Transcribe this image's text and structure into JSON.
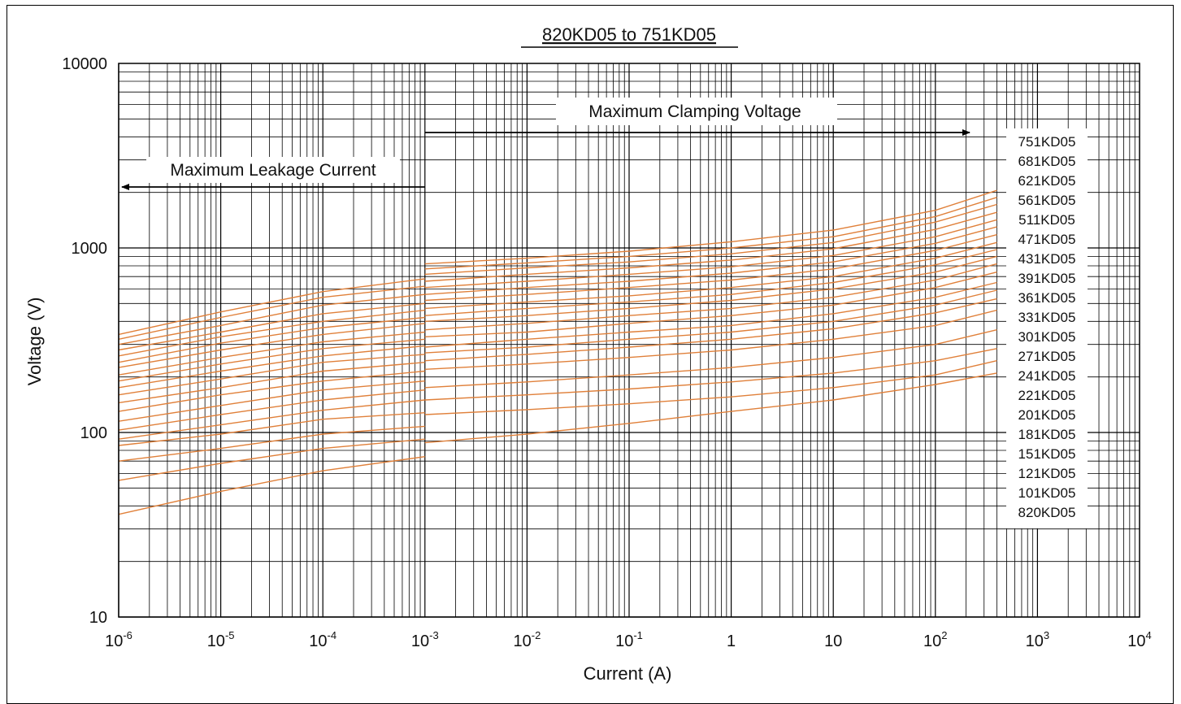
{
  "chart_data": {
    "type": "line",
    "title": "820KD05 to 751KD05",
    "xlabel": "Current (A)",
    "ylabel": "Voltage (V)",
    "xscale": "log",
    "yscale": "log",
    "xlim": [
      1e-06,
      10000
    ],
    "ylim": [
      10,
      10000
    ],
    "grid": true,
    "x_tick_labels": [
      {
        "base": "10",
        "exp": "-6"
      },
      {
        "base": "10",
        "exp": "-5"
      },
      {
        "base": "10",
        "exp": "-4"
      },
      {
        "base": "10",
        "exp": "-3"
      },
      {
        "base": "10",
        "exp": "-2"
      },
      {
        "base": "10",
        "exp": "-1"
      },
      {
        "base": "1",
        "exp": ""
      },
      {
        "base": "10",
        "exp": ""
      },
      {
        "base": "10",
        "exp": "2"
      },
      {
        "base": "10",
        "exp": "3"
      },
      {
        "base": "10",
        "exp": "4"
      }
    ],
    "y_tick_labels": [
      "10",
      "100",
      "1000",
      "10000"
    ],
    "annotations": [
      {
        "text": "Maximum Clamping Voltage",
        "direction": "right",
        "x_start": 0.001,
        "x_end": 200
      },
      {
        "text": "Maximum Leakage Current",
        "direction": "left",
        "x_start": 0.001,
        "x_end": 1e-06
      }
    ],
    "line_color": "#E0803A",
    "legend_placement": "right",
    "legend": [
      "751KD05",
      "681KD05",
      "621KD05",
      "561KD05",
      "511KD05",
      "471KD05",
      "431KD05",
      "391KD05",
      "361KD05",
      "331KD05",
      "301KD05",
      "271KD05",
      "241KD05",
      "221KD05",
      "201KD05",
      "181KD05",
      "151KD05",
      "121KD05",
      "101KD05",
      "820KD05"
    ],
    "leakage_series": [
      {
        "x": [
          1e-06,
          1e-05,
          0.0001,
          0.001
        ],
        "y": [
          340,
          450,
          580,
          680
        ]
      },
      {
        "x": [
          1e-06,
          1e-05,
          0.0001,
          0.001
        ],
        "y": [
          320,
          420,
          540,
          620
        ]
      },
      {
        "x": [
          1e-06,
          1e-05,
          0.0001,
          0.001
        ],
        "y": [
          300,
          380,
          490,
          560
        ]
      },
      {
        "x": [
          1e-06,
          1e-05,
          0.0001,
          0.001
        ],
        "y": [
          280,
          350,
          440,
          500
        ]
      },
      {
        "x": [
          1e-06,
          1e-05,
          0.0001,
          0.001
        ],
        "y": [
          260,
          330,
          400,
          460
        ]
      },
      {
        "x": [
          1e-06,
          1e-05,
          0.0001,
          0.001
        ],
        "y": [
          240,
          305,
          370,
          420
        ]
      },
      {
        "x": [
          1e-06,
          1e-05,
          0.0001,
          0.001
        ],
        "y": [
          225,
          280,
          340,
          390
        ]
      },
      {
        "x": [
          1e-06,
          1e-05,
          0.0001,
          0.001
        ],
        "y": [
          205,
          255,
          310,
          350
        ]
      },
      {
        "x": [
          1e-06,
          1e-05,
          0.0001,
          0.001
        ],
        "y": [
          190,
          235,
          285,
          320
        ]
      },
      {
        "x": [
          1e-06,
          1e-05,
          0.0001,
          0.001
        ],
        "y": [
          175,
          215,
          260,
          295
        ]
      },
      {
        "x": [
          1e-06,
          1e-05,
          0.0001,
          0.001
        ],
        "y": [
          160,
          195,
          240,
          265
        ]
      },
      {
        "x": [
          1e-06,
          1e-05,
          0.0001,
          0.001
        ],
        "y": [
          145,
          175,
          215,
          240
        ]
      },
      {
        "x": [
          1e-06,
          1e-05,
          0.0001,
          0.001
        ],
        "y": [
          130,
          160,
          190,
          215
        ]
      },
      {
        "x": [
          1e-06,
          1e-05,
          0.0001,
          0.001
        ],
        "y": [
          115,
          140,
          170,
          190
        ]
      },
      {
        "x": [
          1e-06,
          1e-05,
          0.0001,
          0.001
        ],
        "y": [
          103,
          125,
          150,
          170
        ]
      },
      {
        "x": [
          1e-06,
          1e-05,
          0.0001,
          0.001
        ],
        "y": [
          92,
          110,
          132,
          150
        ]
      },
      {
        "x": [
          1e-06,
          1e-05,
          0.0001,
          0.001
        ],
        "y": [
          85,
          98,
          118,
          128
        ]
      },
      {
        "x": [
          1e-06,
          1e-05,
          0.0001,
          0.001
        ],
        "y": [
          70,
          82,
          98,
          108
        ]
      },
      {
        "x": [
          1e-06,
          1e-05,
          0.0001,
          0.001
        ],
        "y": [
          55,
          68,
          82,
          92
        ]
      },
      {
        "x": [
          1e-06,
          1e-05,
          0.0001,
          0.001
        ],
        "y": [
          36,
          48,
          62,
          74
        ]
      }
    ],
    "clamping_series": [
      {
        "name": "751KD05",
        "x": [
          0.001,
          0.01,
          0.1,
          1,
          10,
          100,
          400
        ],
        "y": [
          820,
          880,
          960,
          1080,
          1250,
          1600,
          2050
        ]
      },
      {
        "name": "681KD05",
        "x": [
          0.001,
          0.01,
          0.1,
          1,
          10,
          100,
          400
        ],
        "y": [
          770,
          830,
          900,
          1000,
          1150,
          1480,
          1880
        ]
      },
      {
        "name": "621KD05",
        "x": [
          0.001,
          0.01,
          0.1,
          1,
          10,
          100,
          400
        ],
        "y": [
          720,
          780,
          840,
          930,
          1070,
          1380,
          1720
        ]
      },
      {
        "name": "561KD05",
        "x": [
          0.001,
          0.01,
          0.1,
          1,
          10,
          100,
          400
        ],
        "y": [
          660,
          720,
          780,
          860,
          990,
          1260,
          1560
        ]
      },
      {
        "name": "511KD05",
        "x": [
          0.001,
          0.01,
          0.1,
          1,
          10,
          100,
          400
        ],
        "y": [
          610,
          660,
          720,
          790,
          910,
          1150,
          1420
        ]
      },
      {
        "name": "471KD05",
        "x": [
          0.001,
          0.01,
          0.1,
          1,
          10,
          100,
          400
        ],
        "y": [
          560,
          610,
          660,
          730,
          840,
          1060,
          1300
        ]
      },
      {
        "name": "431KD05",
        "x": [
          0.001,
          0.01,
          0.1,
          1,
          10,
          100,
          400
        ],
        "y": [
          520,
          560,
          610,
          670,
          770,
          970,
          1180
        ]
      },
      {
        "name": "391KD05",
        "x": [
          0.001,
          0.01,
          0.1,
          1,
          10,
          100,
          400
        ],
        "y": [
          470,
          510,
          550,
          610,
          700,
          880,
          1070
        ]
      },
      {
        "name": "361KD05",
        "x": [
          0.001,
          0.01,
          0.1,
          1,
          10,
          100,
          400
        ],
        "y": [
          430,
          470,
          510,
          560,
          650,
          810,
          980
        ]
      },
      {
        "name": "331KD05",
        "x": [
          0.001,
          0.01,
          0.1,
          1,
          10,
          100,
          400
        ],
        "y": [
          400,
          430,
          470,
          520,
          600,
          740,
          900
        ]
      },
      {
        "name": "301KD05",
        "x": [
          0.001,
          0.01,
          0.1,
          1,
          10,
          100,
          400
        ],
        "y": [
          360,
          390,
          430,
          470,
          540,
          670,
          820
        ]
      },
      {
        "name": "271KD05",
        "x": [
          0.001,
          0.01,
          0.1,
          1,
          10,
          100,
          400
        ],
        "y": [
          330,
          350,
          390,
          430,
          490,
          610,
          740
        ]
      },
      {
        "name": "241KD05",
        "x": [
          0.001,
          0.01,
          0.1,
          1,
          10,
          100,
          400
        ],
        "y": [
          290,
          320,
          350,
          380,
          440,
          540,
          650
        ]
      },
      {
        "name": "221KD05",
        "x": [
          0.001,
          0.01,
          0.1,
          1,
          10,
          100,
          400
        ],
        "y": [
          270,
          290,
          320,
          350,
          400,
          490,
          590
        ]
      },
      {
        "name": "201KD05",
        "x": [
          0.001,
          0.01,
          0.1,
          1,
          10,
          100,
          400
        ],
        "y": [
          245,
          265,
          290,
          320,
          365,
          445,
          530
        ]
      },
      {
        "name": "181KD05",
        "x": [
          0.001,
          0.01,
          0.1,
          1,
          10,
          100,
          400
        ],
        "y": [
          220,
          235,
          255,
          280,
          320,
          380,
          460
        ]
      },
      {
        "name": "151KD05",
        "x": [
          0.001,
          0.01,
          0.1,
          1,
          10,
          100,
          400
        ],
        "y": [
          175,
          188,
          205,
          225,
          255,
          300,
          360
        ]
      },
      {
        "name": "121KD05",
        "x": [
          0.001,
          0.01,
          0.1,
          1,
          10,
          100,
          400
        ],
        "y": [
          150,
          160,
          172,
          188,
          210,
          245,
          285
        ]
      },
      {
        "name": "101KD05",
        "x": [
          0.001,
          0.01,
          0.1,
          1,
          10,
          100,
          400
        ],
        "y": [
          125,
          133,
          143,
          156,
          175,
          205,
          245
        ]
      },
      {
        "name": "820KD05",
        "x": [
          0.001,
          0.01,
          0.1,
          1,
          10,
          100,
          400
        ],
        "y": [
          88,
          98,
          112,
          130,
          150,
          182,
          210
        ]
      }
    ]
  }
}
